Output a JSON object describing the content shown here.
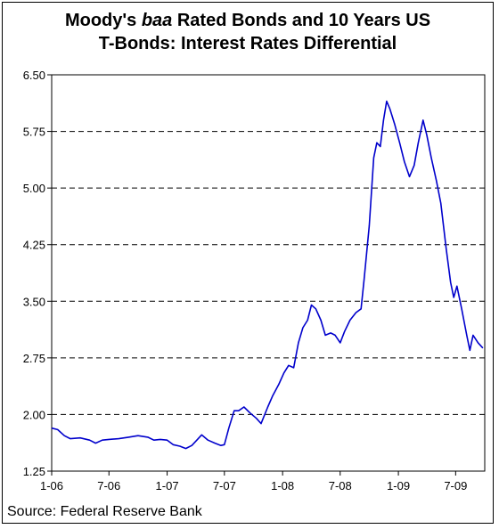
{
  "chart_data": {
    "type": "line",
    "title_parts": [
      "Moody's ",
      "baa",
      " Rated Bonds and 10 Years US",
      "T-Bonds: Interest Rates Differential"
    ],
    "source": "Source: Federal Reserve Bank",
    "ylim": [
      1.25,
      6.5
    ],
    "yticks": [
      1.25,
      2.0,
      2.75,
      3.5,
      4.25,
      5.0,
      5.75,
      6.5
    ],
    "ytick_labels": [
      "1.25",
      "2.00",
      "2.75",
      "3.50",
      "4.25",
      "5.00",
      "5.75",
      "6.50"
    ],
    "xlim": [
      "2006-01",
      "2009-10"
    ],
    "xticks": [
      "2006-01",
      "2006-07",
      "2007-01",
      "2007-07",
      "2008-01",
      "2008-07",
      "2009-01",
      "2009-07"
    ],
    "xtick_labels": [
      "1-06",
      "7-06",
      "1-07",
      "7-07",
      "1-08",
      "7-08",
      "1-09",
      "7-09"
    ],
    "grid_y": true,
    "series": [
      {
        "color": "#0000cc",
        "points": [
          [
            "2006-01-01",
            1.82
          ],
          [
            "2006-01-20",
            1.8
          ],
          [
            "2006-02-10",
            1.72
          ],
          [
            "2006-03-01",
            1.68
          ],
          [
            "2006-04-01",
            1.69
          ],
          [
            "2006-05-01",
            1.66
          ],
          [
            "2006-05-20",
            1.62
          ],
          [
            "2006-06-10",
            1.66
          ],
          [
            "2006-07-01",
            1.67
          ],
          [
            "2006-08-01",
            1.68
          ],
          [
            "2006-09-01",
            1.7
          ],
          [
            "2006-10-01",
            1.72
          ],
          [
            "2006-11-01",
            1.7
          ],
          [
            "2006-11-20",
            1.66
          ],
          [
            "2006-12-10",
            1.67
          ],
          [
            "2007-01-01",
            1.66
          ],
          [
            "2007-01-20",
            1.6
          ],
          [
            "2007-02-10",
            1.58
          ],
          [
            "2007-03-01",
            1.55
          ],
          [
            "2007-03-20",
            1.59
          ],
          [
            "2007-04-05",
            1.66
          ],
          [
            "2007-04-20",
            1.73
          ],
          [
            "2007-05-10",
            1.66
          ],
          [
            "2007-06-01",
            1.62
          ],
          [
            "2007-06-20",
            1.59
          ],
          [
            "2007-07-01",
            1.6
          ],
          [
            "2007-07-15",
            1.82
          ],
          [
            "2007-08-01",
            2.05
          ],
          [
            "2007-08-15",
            2.05
          ],
          [
            "2007-09-01",
            2.1
          ],
          [
            "2007-09-20",
            2.02
          ],
          [
            "2007-10-10",
            1.95
          ],
          [
            "2007-10-25",
            1.88
          ],
          [
            "2007-11-15",
            2.1
          ],
          [
            "2007-12-01",
            2.25
          ],
          [
            "2007-12-20",
            2.4
          ],
          [
            "2008-01-05",
            2.55
          ],
          [
            "2008-01-20",
            2.65
          ],
          [
            "2008-02-05",
            2.62
          ],
          [
            "2008-02-20",
            2.95
          ],
          [
            "2008-03-05",
            3.15
          ],
          [
            "2008-03-20",
            3.25
          ],
          [
            "2008-04-01",
            3.45
          ],
          [
            "2008-04-15",
            3.4
          ],
          [
            "2008-05-01",
            3.25
          ],
          [
            "2008-05-15",
            3.05
          ],
          [
            "2008-06-01",
            3.08
          ],
          [
            "2008-06-15",
            3.05
          ],
          [
            "2008-07-01",
            2.95
          ],
          [
            "2008-07-15",
            3.1
          ],
          [
            "2008-08-01",
            3.25
          ],
          [
            "2008-08-20",
            3.35
          ],
          [
            "2008-09-05",
            3.4
          ],
          [
            "2008-09-15",
            3.8
          ],
          [
            "2008-10-01",
            4.5
          ],
          [
            "2008-10-15",
            5.4
          ],
          [
            "2008-10-25",
            5.6
          ],
          [
            "2008-11-05",
            5.55
          ],
          [
            "2008-11-15",
            5.9
          ],
          [
            "2008-11-25",
            6.15
          ],
          [
            "2008-12-05",
            6.05
          ],
          [
            "2008-12-20",
            5.85
          ],
          [
            "2009-01-05",
            5.6
          ],
          [
            "2009-01-20",
            5.35
          ],
          [
            "2009-02-05",
            5.15
          ],
          [
            "2009-02-20",
            5.3
          ],
          [
            "2009-03-05",
            5.6
          ],
          [
            "2009-03-20",
            5.9
          ],
          [
            "2009-04-01",
            5.7
          ],
          [
            "2009-04-15",
            5.4
          ],
          [
            "2009-05-01",
            5.1
          ],
          [
            "2009-05-15",
            4.8
          ],
          [
            "2009-06-01",
            4.2
          ],
          [
            "2009-06-15",
            3.75
          ],
          [
            "2009-06-25",
            3.55
          ],
          [
            "2009-07-05",
            3.7
          ],
          [
            "2009-07-20",
            3.4
          ],
          [
            "2009-08-05",
            3.05
          ],
          [
            "2009-08-15",
            2.85
          ],
          [
            "2009-08-25",
            3.05
          ],
          [
            "2009-09-10",
            2.95
          ],
          [
            "2009-09-25",
            2.88
          ]
        ]
      }
    ]
  }
}
